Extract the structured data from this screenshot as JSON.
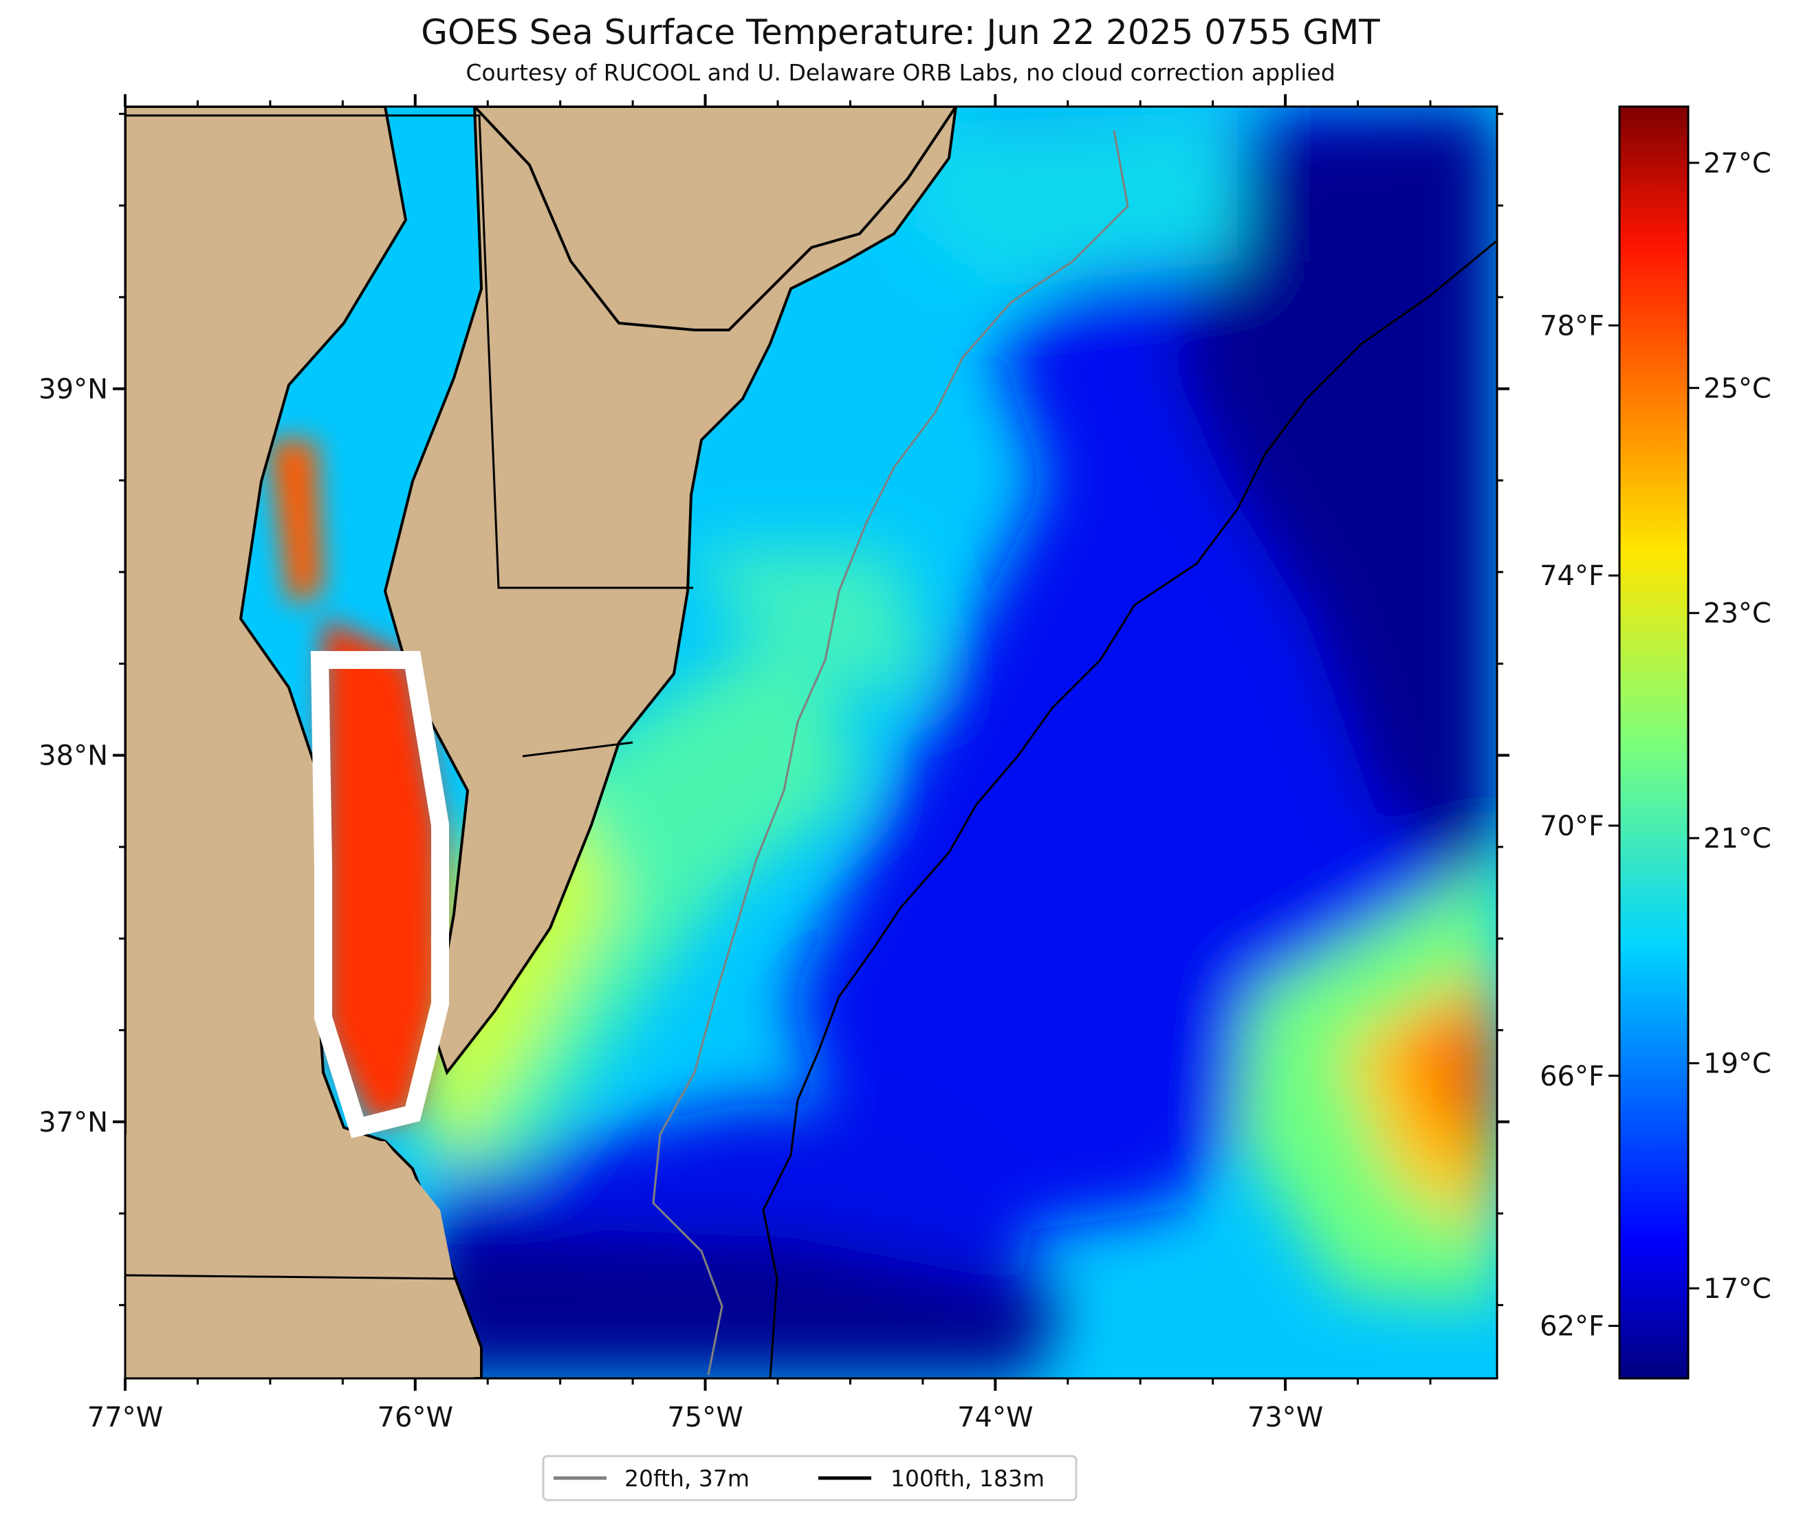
{
  "title": "GOES Sea Surface Temperature: Jun 22 2025 0755 GMT",
  "subtitle": "Courtesy of RUCOOL and U. Delaware ORB Labs, no cloud correction applied",
  "map": {
    "lon_range": [
      -77.0,
      -72.27
    ],
    "lat_range": [
      36.3,
      39.77
    ],
    "lon_ticks": [
      {
        "value": -77,
        "label": "77°W"
      },
      {
        "value": -76,
        "label": "76°W"
      },
      {
        "value": -75,
        "label": "75°W"
      },
      {
        "value": -74,
        "label": "74°W"
      },
      {
        "value": -73,
        "label": "73°W"
      }
    ],
    "lat_ticks": [
      {
        "value": 39,
        "label": "39°N"
      },
      {
        "value": 38,
        "label": "38°N"
      },
      {
        "value": 37,
        "label": "37°N"
      }
    ],
    "colors": {
      "land": "#d1b48c",
      "coast": "#000000",
      "isobath_20": "#808080",
      "isobath_100": "#000000"
    }
  },
  "colorbar": {
    "range_c": [
      16.2,
      27.5
    ],
    "celsius_ticks": [
      {
        "value": 27,
        "label": "27°C"
      },
      {
        "value": 25,
        "label": "25°C"
      },
      {
        "value": 23,
        "label": "23°C"
      },
      {
        "value": 21,
        "label": "21°C"
      },
      {
        "value": 19,
        "label": "19°C"
      },
      {
        "value": 17,
        "label": "17°C"
      }
    ],
    "fahrenheit_ticks": [
      {
        "value": 78,
        "label": "78°F"
      },
      {
        "value": 74,
        "label": "74°F"
      },
      {
        "value": 70,
        "label": "70°F"
      },
      {
        "value": 66,
        "label": "66°F"
      },
      {
        "value": 62,
        "label": "62°F"
      }
    ],
    "colormap": "jet"
  },
  "legend": {
    "items": [
      {
        "label": "20fth, 37m",
        "color": "#808080"
      },
      {
        "label": "100fth, 183m",
        "color": "#000000"
      }
    ]
  }
}
